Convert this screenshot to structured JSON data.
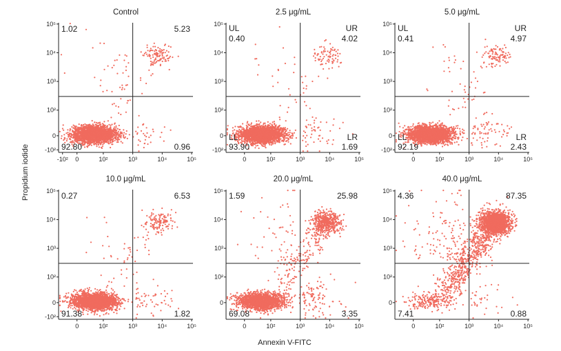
{
  "figure": {
    "x_axis_label": "Annexin V-FITC",
    "y_axis_label": "Propidium iodide",
    "colors": {
      "dots": "#f06b5e",
      "axes": "#222222",
      "gates": "#222222"
    }
  },
  "chart_data": [
    {
      "type": "scatter",
      "title": "Control",
      "quadrants": {
        "UL": "1.02",
        "UR": "5.23",
        "LL": "92.80",
        "LR": "0.96"
      },
      "quadrant_names_shown": false,
      "x_ticks": [
        "-10²",
        "0",
        "10²",
        "10³",
        "10⁴",
        "10⁵"
      ],
      "y_ticks": [
        "10⁵",
        "10⁴",
        "10³",
        "10²",
        "0",
        "-10²"
      ],
      "xscale": "biexponential",
      "yscale": "biexponential",
      "gate": {
        "x": 1000,
        "y": 300
      }
    },
    {
      "type": "scatter",
      "title": "2.5 μg/mL",
      "quadrants": {
        "UL": "0.40",
        "UR": "4.02",
        "LL": "93.90",
        "LR": "1.69"
      },
      "quadrant_names_shown": true,
      "quadrant_names": {
        "UL": "UL",
        "UR": "UR",
        "LL": "LL",
        "LR": "LR"
      },
      "x_ticks": [
        "0",
        "10²",
        "10³",
        "10⁴",
        "10⁵"
      ],
      "y_ticks": [
        "10⁵",
        "10⁴",
        "10³",
        "10²",
        "0",
        "-10²"
      ],
      "xscale": "biexponential",
      "yscale": "biexponential",
      "gate": {
        "x": 1000,
        "y": 300
      }
    },
    {
      "type": "scatter",
      "title": "5.0 μg/mL",
      "quadrants": {
        "UL": "0.41",
        "UR": "4.97",
        "LL": "92.19",
        "LR": "2.43"
      },
      "quadrant_names_shown": true,
      "quadrant_names": {
        "UL": "UL",
        "UR": "UR",
        "LL": "LL",
        "LR": "LR"
      },
      "x_ticks": [
        "0",
        "10²",
        "10³",
        "10⁴",
        "10⁵"
      ],
      "y_ticks": [
        "10⁵",
        "10⁴",
        "10³",
        "10²",
        "0",
        "-10²"
      ],
      "xscale": "biexponential",
      "yscale": "biexponential",
      "gate": {
        "x": 1000,
        "y": 300
      }
    },
    {
      "type": "scatter",
      "title": "10.0 μg/mL",
      "quadrants": {
        "UL": "0.27",
        "UR": "6.53",
        "LL": "91.38",
        "LR": "1.82"
      },
      "quadrant_names_shown": false,
      "x_ticks": [
        "0",
        "10²",
        "10³",
        "10⁴",
        "10⁵"
      ],
      "y_ticks": [
        "10⁵",
        "10⁴",
        "10³",
        "10²",
        "0",
        "-10²"
      ],
      "xscale": "biexponential",
      "yscale": "biexponential",
      "gate": {
        "x": 1000,
        "y": 300
      }
    },
    {
      "type": "scatter",
      "title": "20.0 μg/mL",
      "quadrants": {
        "UL": "1.59",
        "UR": "25.98",
        "LL": "69.08",
        "LR": "3.35"
      },
      "quadrant_names_shown": false,
      "x_ticks": [
        "0",
        "10²",
        "10³",
        "10⁴",
        "10⁵"
      ],
      "y_ticks": [
        "10⁵",
        "10⁴",
        "10³",
        "10²",
        "0"
      ],
      "xscale": "biexponential",
      "yscale": "biexponential",
      "gate": {
        "x": 1000,
        "y": 300
      }
    },
    {
      "type": "scatter",
      "title": "40.0 μg/mL",
      "quadrants": {
        "UL": "4.36",
        "UR": "87.35",
        "LL": "7.41",
        "LR": "0.88"
      },
      "quadrant_names_shown": false,
      "x_ticks": [
        "0",
        "10²",
        "10³",
        "10⁴",
        "10⁵"
      ],
      "y_ticks": [
        "10⁵",
        "10⁴",
        "10³",
        "10²",
        "0"
      ],
      "xscale": "biexponential",
      "yscale": "biexponential",
      "gate": {
        "x": 1000,
        "y": 300
      }
    }
  ]
}
